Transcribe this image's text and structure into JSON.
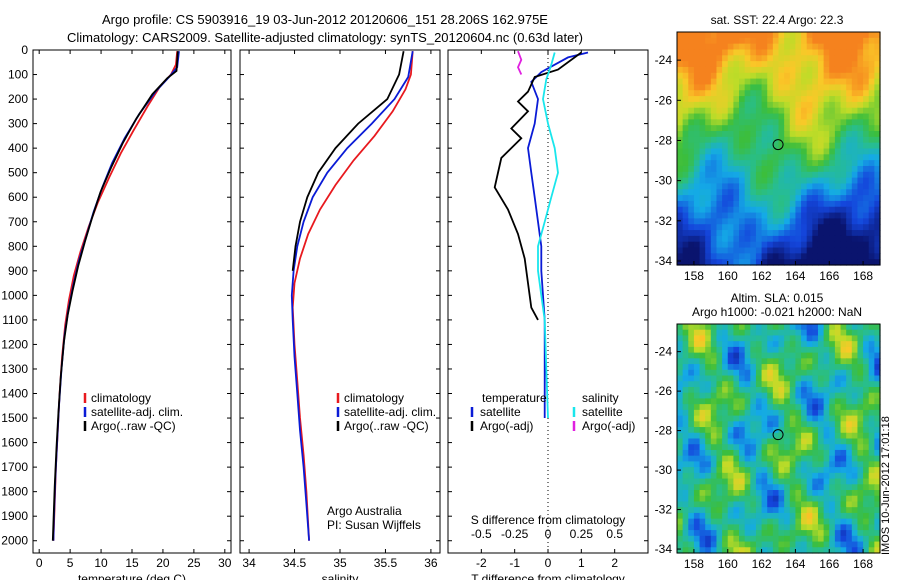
{
  "title": {
    "line1": "Argo profile: CS 5903916_19 03-Jun-2012 20120606_151 28.206S 162.975E",
    "line2": "Climatology: CARS2009. Satellite-adjusted climatology: synTS_20120604.nc (0.63d later)"
  },
  "stamp": "IMOS 10-Jun-2012 17:01:18",
  "colors": {
    "climatology": "#e8191e",
    "satellite": "#0a1bd6",
    "argo": "#000000",
    "cyan": "#19e6ec",
    "magenta": "#e020e0"
  },
  "chart_data": [
    {
      "type": "line",
      "id": "temperature",
      "xlabel": "temperature (deg C)",
      "xlim": [
        -1,
        31
      ],
      "xticks": [
        0,
        5,
        10,
        15,
        20,
        25,
        30
      ],
      "ylim": [
        2050,
        0
      ],
      "yticks": [
        0,
        100,
        200,
        300,
        400,
        500,
        600,
        700,
        800,
        900,
        1000,
        1100,
        1200,
        1300,
        1400,
        1500,
        1600,
        1700,
        1800,
        1900,
        2000
      ],
      "legend": [
        "climatology",
        "satellite-adj. clim.",
        "Argo(..raw -QC)"
      ],
      "series": [
        {
          "name": "climatology",
          "color": "#e8191e",
          "points": [
            [
              22.3,
              5
            ],
            [
              22.1,
              60
            ],
            [
              21.3,
              100
            ],
            [
              19.5,
              150
            ],
            [
              17.5,
              230
            ],
            [
              15.2,
              330
            ],
            [
              13.2,
              420
            ],
            [
              11.3,
              520
            ],
            [
              9.5,
              620
            ],
            [
              8.0,
              720
            ],
            [
              6.7,
              820
            ],
            [
              5.6,
              920
            ],
            [
              4.8,
              1020
            ],
            [
              4.2,
              1120
            ],
            [
              3.7,
              1250
            ],
            [
              3.3,
              1400
            ],
            [
              3.0,
              1550
            ],
            [
              2.7,
              1700
            ],
            [
              2.5,
              1850
            ],
            [
              2.3,
              2000
            ]
          ]
        },
        {
          "name": "satellite-adj. clim.",
          "color": "#0a1bd6",
          "points": [
            [
              22.6,
              5
            ],
            [
              22.3,
              70
            ],
            [
              21.0,
              110
            ],
            [
              18.8,
              170
            ],
            [
              16.2,
              260
            ],
            [
              13.8,
              360
            ],
            [
              11.8,
              460
            ],
            [
              10.2,
              560
            ],
            [
              8.8,
              660
            ],
            [
              7.6,
              760
            ],
            [
              6.4,
              860
            ],
            [
              5.5,
              960
            ],
            [
              4.7,
              1060
            ],
            [
              4.1,
              1160
            ],
            [
              3.6,
              1300
            ],
            [
              3.2,
              1450
            ],
            [
              2.9,
              1600
            ],
            [
              2.6,
              1750
            ],
            [
              2.4,
              1900
            ],
            [
              2.3,
              2000
            ]
          ]
        },
        {
          "name": "Argo(..raw -QC)",
          "color": "#000000",
          "points": [
            [
              22.4,
              5
            ],
            [
              22.2,
              85
            ],
            [
              20.7,
              115
            ],
            [
              18.3,
              180
            ],
            [
              15.7,
              280
            ],
            [
              13.5,
              380
            ],
            [
              11.6,
              480
            ],
            [
              9.9,
              580
            ],
            [
              8.6,
              680
            ],
            [
              7.4,
              780
            ],
            [
              6.3,
              880
            ],
            [
              5.4,
              980
            ],
            [
              4.6,
              1080
            ],
            [
              4.0,
              1190
            ],
            [
              3.5,
              1330
            ],
            [
              3.1,
              1480
            ],
            [
              2.8,
              1620
            ],
            [
              2.5,
              1780
            ],
            [
              2.3,
              1930
            ],
            [
              2.2,
              2000
            ]
          ]
        }
      ]
    },
    {
      "type": "line",
      "id": "salinity",
      "xlabel": "salinity",
      "xlim": [
        33.9,
        36.1
      ],
      "xticks": [
        34,
        34.5,
        35,
        35.5,
        36
      ],
      "ylim": [
        2050,
        0
      ],
      "legend": [
        "climatology",
        "satellite-adj. clim.",
        "Argo(..raw -QC)"
      ],
      "annotation": [
        "Argo Australia",
        "PI: Susan Wijffels"
      ],
      "series": [
        {
          "name": "climatology",
          "color": "#e8191e",
          "points": [
            [
              35.8,
              5
            ],
            [
              35.78,
              100
            ],
            [
              35.72,
              160
            ],
            [
              35.58,
              250
            ],
            [
              35.38,
              350
            ],
            [
              35.15,
              450
            ],
            [
              34.95,
              550
            ],
            [
              34.78,
              650
            ],
            [
              34.65,
              750
            ],
            [
              34.56,
              850
            ],
            [
              34.5,
              950
            ],
            [
              34.48,
              1050
            ],
            [
              34.5,
              1200
            ],
            [
              34.53,
              1350
            ],
            [
              34.56,
              1500
            ],
            [
              34.6,
              1650
            ],
            [
              34.63,
              1800
            ],
            [
              34.66,
              2000
            ]
          ]
        },
        {
          "name": "satellite-adj. clim.",
          "color": "#0a1bd6",
          "points": [
            [
              35.8,
              5
            ],
            [
              35.75,
              110
            ],
            [
              35.6,
              200
            ],
            [
              35.35,
              300
            ],
            [
              35.08,
              400
            ],
            [
              34.86,
              500
            ],
            [
              34.7,
              600
            ],
            [
              34.6,
              700
            ],
            [
              34.53,
              800
            ],
            [
              34.49,
              900
            ],
            [
              34.47,
              1000
            ],
            [
              34.48,
              1100
            ],
            [
              34.5,
              1250
            ],
            [
              34.53,
              1400
            ],
            [
              34.56,
              1550
            ],
            [
              34.6,
              1700
            ],
            [
              34.63,
              1850
            ],
            [
              34.66,
              2000
            ]
          ]
        },
        {
          "name": "Argo(..raw -QC)",
          "color": "#000000",
          "points": [
            [
              35.7,
              5
            ],
            [
              35.65,
              100
            ],
            [
              35.52,
              200
            ],
            [
              35.2,
              300
            ],
            [
              34.95,
              400
            ],
            [
              34.76,
              500
            ],
            [
              34.64,
              600
            ],
            [
              34.56,
              700
            ],
            [
              34.51,
              800
            ],
            [
              34.48,
              900
            ]
          ]
        }
      ]
    },
    {
      "type": "line",
      "id": "difference",
      "xlabel": "T difference from climatology",
      "xlabel_top": "S difference from climatology",
      "xlim": [
        -3,
        3
      ],
      "xticks": [
        -2,
        -1,
        0,
        1,
        2
      ],
      "sticks": [
        "-0.5",
        "-0.25",
        "0",
        "0.25",
        "0.5"
      ],
      "ylim": [
        2050,
        0
      ],
      "legend_left": {
        "title": "temperature",
        "items": [
          "satellite",
          "Argo(-adj)"
        ]
      },
      "legend_right": {
        "title": "salinity",
        "items": [
          "satellite",
          "Argo(-adj)"
        ]
      },
      "series": [
        {
          "name": "temperature satellite",
          "color": "#0a1bd6",
          "points": [
            [
              1.2,
              10
            ],
            [
              0.6,
              30
            ],
            [
              0.2,
              60
            ],
            [
              -0.2,
              90
            ],
            [
              -0.5,
              130
            ],
            [
              -0.3,
              200
            ],
            [
              -0.4,
              300
            ],
            [
              -0.6,
              400
            ],
            [
              -0.5,
              500
            ],
            [
              -0.4,
              600
            ],
            [
              -0.3,
              700
            ],
            [
              -0.2,
              800
            ],
            [
              -0.2,
              900
            ],
            [
              -0.15,
              1000
            ],
            [
              -0.1,
              1100
            ],
            [
              -0.1,
              1200
            ],
            [
              -0.1,
              1300
            ],
            [
              -0.1,
              1400
            ],
            [
              -0.1,
              1500
            ]
          ]
        },
        {
          "name": "temperature Argo(-adj)",
          "color": "#000000",
          "points": [
            [
              1.0,
              10
            ],
            [
              0.3,
              80
            ],
            [
              -0.4,
              110
            ],
            [
              -0.6,
              170
            ],
            [
              -0.9,
              210
            ],
            [
              -0.6,
              250
            ],
            [
              -1.1,
              320
            ],
            [
              -0.8,
              360
            ],
            [
              -1.4,
              440
            ],
            [
              -1.6,
              560
            ],
            [
              -1.2,
              650
            ],
            [
              -0.9,
              750
            ],
            [
              -0.7,
              850
            ],
            [
              -0.6,
              950
            ],
            [
              -0.5,
              1050
            ],
            [
              -0.3,
              1100
            ]
          ]
        },
        {
          "name": "salinity satellite",
          "color": "#19e6ec",
          "points": [
            [
              0.2,
              10
            ],
            [
              0.1,
              60
            ],
            [
              -0.05,
              120
            ],
            [
              -0.15,
              200
            ],
            [
              0.0,
              300
            ],
            [
              0.2,
              400
            ],
            [
              0.3,
              500
            ],
            [
              0.1,
              600
            ],
            [
              -0.1,
              700
            ],
            [
              -0.3,
              800
            ],
            [
              -0.3,
              900
            ],
            [
              -0.2,
              1000
            ],
            [
              -0.1,
              1100
            ],
            [
              -0.05,
              1300
            ],
            [
              0.0,
              1500
            ]
          ]
        },
        {
          "name": "salinity Argo(-adj)",
          "color": "#e020e0",
          "points": [
            [
              -0.9,
              5
            ],
            [
              -0.8,
              40
            ],
            [
              -0.9,
              70
            ],
            [
              -0.8,
              100
            ]
          ]
        }
      ]
    },
    {
      "type": "heatmap",
      "id": "sst-map",
      "title": "sat. SST: 22.4  Argo: 22.3",
      "xlim": [
        157,
        169
      ],
      "ylim": [
        -34.2,
        -22.6
      ],
      "xticks": [
        158,
        160,
        162,
        164,
        166,
        168
      ],
      "yticks": [
        -24,
        -26,
        -28,
        -30,
        -32,
        -34
      ],
      "marker": {
        "lon": 162.975,
        "lat": -28.206
      }
    },
    {
      "type": "heatmap",
      "id": "sla-map",
      "title": "Altim. SLA: 0.015",
      "subtitle": "Argo h1000: -0.021  h2000: NaN",
      "xlim": [
        157,
        169
      ],
      "ylim": [
        -34.2,
        -22.6
      ],
      "xticks": [
        158,
        160,
        162,
        164,
        166,
        168
      ],
      "yticks": [
        -24,
        -26,
        -28,
        -30,
        -32,
        -34
      ],
      "marker": {
        "lon": 162.975,
        "lat": -28.206
      }
    }
  ]
}
